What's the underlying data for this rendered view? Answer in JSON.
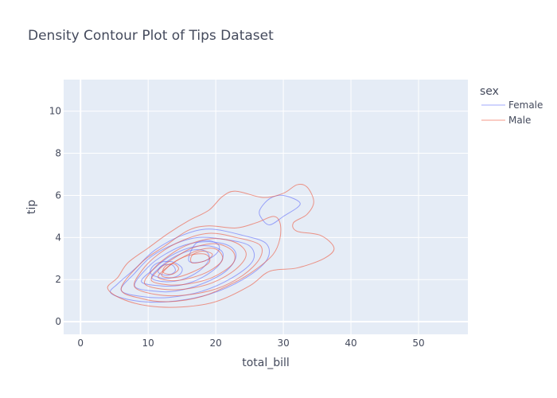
{
  "chart_data": {
    "type": "contour",
    "title": "Density Contour Plot of Tips Dataset",
    "xlabel": "total_bill",
    "ylabel": "tip",
    "xlim": [
      -2.5,
      57.3
    ],
    "ylim": [
      -0.6,
      11.5
    ],
    "xticks": [
      0,
      10,
      20,
      30,
      40,
      50
    ],
    "yticks": [
      0,
      2,
      4,
      6,
      8,
      10
    ],
    "grid": true,
    "legend": {
      "title": "sex",
      "placement": "top-right"
    },
    "series": [
      {
        "name": "Female",
        "color": "#636efa",
        "contours": [
          [
            [
              4.5,
              1.35
            ],
            [
              8,
              1.0
            ],
            [
              13,
              0.95
            ],
            [
              19,
              1.3
            ],
            [
              24,
              2.0
            ],
            [
              27.5,
              2.9
            ],
            [
              27.5,
              3.7
            ],
            [
              24,
              4.1
            ],
            [
              19,
              4.4
            ],
            [
              15,
              4.1
            ],
            [
              11,
              3.4
            ],
            [
              8,
              2.5
            ],
            [
              5.5,
              1.8
            ]
          ],
          [
            [
              6,
              1.5
            ],
            [
              9,
              1.2
            ],
            [
              13,
              1.15
            ],
            [
              18,
              1.45
            ],
            [
              22.5,
              2.1
            ],
            [
              25.5,
              2.9
            ],
            [
              25,
              3.6
            ],
            [
              21.5,
              3.9
            ],
            [
              17.5,
              4.0
            ],
            [
              14,
              3.7
            ],
            [
              10.5,
              3.1
            ],
            [
              8,
              2.3
            ]
          ],
          [
            [
              8,
              1.7
            ],
            [
              11,
              1.45
            ],
            [
              14,
              1.45
            ],
            [
              18,
              1.8
            ],
            [
              21.5,
              2.4
            ],
            [
              23,
              3.1
            ],
            [
              22,
              3.6
            ],
            [
              19,
              3.8
            ],
            [
              15.5,
              3.65
            ],
            [
              12.5,
              3.2
            ],
            [
              10,
              2.6
            ]
          ],
          [
            [
              9,
              1.9
            ],
            [
              12,
              1.7
            ],
            [
              15,
              1.75
            ],
            [
              18,
              2.1
            ],
            [
              20.5,
              2.7
            ],
            [
              21,
              3.3
            ],
            [
              19,
              3.6
            ],
            [
              16,
              3.5
            ],
            [
              13.2,
              3.1
            ],
            [
              11,
              2.55
            ]
          ],
          [
            [
              10.5,
              2.1
            ],
            [
              12.5,
              1.9
            ],
            [
              15,
              2.0
            ],
            [
              17.5,
              2.4
            ],
            [
              19,
              2.95
            ],
            [
              18.5,
              3.35
            ],
            [
              16.5,
              3.4
            ],
            [
              14,
              3.1
            ],
            [
              12,
              2.65
            ]
          ],
          [
            [
              16,
              2.9
            ],
            [
              18,
              2.85
            ],
            [
              20,
              3.2
            ],
            [
              20.5,
              3.6
            ],
            [
              19,
              3.85
            ],
            [
              17,
              3.7
            ]
          ],
          [
            [
              10.5,
              2.25
            ],
            [
              12.5,
              2.05
            ],
            [
              14.5,
              2.2
            ],
            [
              15,
              2.55
            ],
            [
              13.5,
              2.85
            ],
            [
              11.5,
              2.8
            ],
            [
              10.5,
              2.55
            ]
          ],
          [
            [
              11.5,
              2.35
            ],
            [
              12.8,
              2.2
            ],
            [
              14,
              2.4
            ],
            [
              13.5,
              2.7
            ],
            [
              12,
              2.65
            ]
          ],
          [
            [
              26.5,
              5.3
            ],
            [
              28,
              5.85
            ],
            [
              30,
              6.0
            ],
            [
              32.5,
              5.6
            ],
            [
              30,
              5.0
            ],
            [
              28,
              4.6
            ],
            [
              26.8,
              4.9
            ]
          ]
        ]
      },
      {
        "name": "Male",
        "color": "#ef553b",
        "contours": [
          [
            [
              4,
              1.6
            ],
            [
              6,
              1.1
            ],
            [
              10,
              0.75
            ],
            [
              15,
              0.7
            ],
            [
              20,
              0.95
            ],
            [
              25,
              1.7
            ],
            [
              28,
              2.4
            ],
            [
              32,
              2.55
            ],
            [
              36,
              3.0
            ],
            [
              37.5,
              3.5
            ],
            [
              35.5,
              4.1
            ],
            [
              32,
              4.3
            ],
            [
              31.5,
              4.7
            ],
            [
              33.5,
              5.1
            ],
            [
              34.5,
              5.7
            ],
            [
              33.5,
              6.4
            ],
            [
              32,
              6.5
            ],
            [
              30,
              6.1
            ],
            [
              27,
              5.9
            ],
            [
              23,
              6.2
            ],
            [
              21,
              5.95
            ],
            [
              19,
              5.3
            ],
            [
              16,
              4.8
            ],
            [
              13,
              4.2
            ],
            [
              10,
              3.5
            ],
            [
              7,
              2.8
            ],
            [
              5.5,
              2.1
            ]
          ],
          [
            [
              6,
              1.55
            ],
            [
              9,
              1.1
            ],
            [
              13,
              0.95
            ],
            [
              18,
              1.2
            ],
            [
              23,
              1.9
            ],
            [
              26,
              2.5
            ],
            [
              28.5,
              3.2
            ],
            [
              29.5,
              3.95
            ],
            [
              29.5,
              4.7
            ],
            [
              28.5,
              5.0
            ],
            [
              26,
              4.7
            ],
            [
              23,
              4.45
            ],
            [
              19,
              4.55
            ],
            [
              16,
              4.35
            ],
            [
              12.5,
              3.6
            ],
            [
              9,
              2.8
            ]
          ],
          [
            [
              8,
              1.65
            ],
            [
              11,
              1.3
            ],
            [
              15,
              1.25
            ],
            [
              20,
              1.55
            ],
            [
              24,
              2.2
            ],
            [
              26.5,
              3.0
            ],
            [
              26.5,
              3.65
            ],
            [
              23,
              4.0
            ],
            [
              19,
              4.2
            ],
            [
              15,
              3.85
            ],
            [
              11.5,
              3.2
            ],
            [
              9,
              2.4
            ]
          ],
          [
            [
              9.5,
              1.8
            ],
            [
              12,
              1.55
            ],
            [
              15.5,
              1.55
            ],
            [
              19.5,
              1.85
            ],
            [
              23,
              2.5
            ],
            [
              24.5,
              3.2
            ],
            [
              23,
              3.75
            ],
            [
              19.5,
              3.95
            ],
            [
              15.5,
              3.6
            ],
            [
              12.5,
              3.0
            ],
            [
              10.5,
              2.4
            ]
          ],
          [
            [
              10.5,
              1.95
            ],
            [
              13,
              1.75
            ],
            [
              16,
              1.8
            ],
            [
              19.5,
              2.1
            ],
            [
              22.5,
              2.75
            ],
            [
              22.5,
              3.35
            ],
            [
              20,
              3.7
            ],
            [
              16.5,
              3.5
            ],
            [
              13.5,
              2.95
            ],
            [
              11.5,
              2.45
            ]
          ],
          [
            [
              11.5,
              2.1
            ],
            [
              13.5,
              1.95
            ],
            [
              16,
              2.05
            ],
            [
              19,
              2.4
            ],
            [
              21,
              2.95
            ],
            [
              20,
              3.45
            ],
            [
              17.5,
              3.4
            ],
            [
              14.5,
              2.95
            ],
            [
              12.5,
              2.5
            ]
          ],
          [
            [
              12,
              2.2
            ],
            [
              14,
              2.1
            ],
            [
              16.5,
              2.35
            ],
            [
              19,
              2.8
            ],
            [
              18.5,
              3.2
            ],
            [
              16,
              3.15
            ],
            [
              13.5,
              2.75
            ]
          ],
          [
            [
              12.2,
              2.35
            ],
            [
              13.5,
              2.25
            ],
            [
              14.5,
              2.5
            ],
            [
              13.8,
              2.75
            ],
            [
              12.6,
              2.65
            ]
          ],
          [
            [
              16.5,
              2.8
            ],
            [
              18.5,
              2.9
            ],
            [
              19.5,
              3.2
            ],
            [
              18,
              3.35
            ],
            [
              16.5,
              3.15
            ]
          ]
        ]
      }
    ]
  }
}
